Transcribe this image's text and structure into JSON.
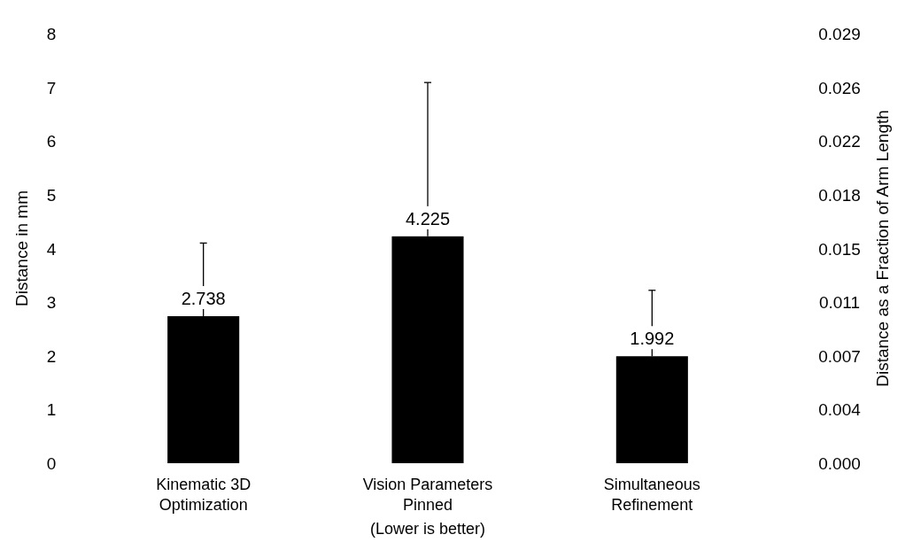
{
  "chart_data": {
    "type": "bar",
    "categories": [
      "Kinematic 3D Optimization",
      "Vision Parameters Pinned",
      "Simultaneous Refinement"
    ],
    "values": [
      2.738,
      4.225,
      1.992
    ],
    "errors": [
      [
        2.738,
        4.1
      ],
      [
        4.225,
        7.09
      ],
      [
        1.992,
        3.22
      ]
    ],
    "color": "#000000",
    "data_labels": true,
    "xlabel": "(Lower is better)",
    "ylabel": "Distance in mm",
    "y2label": "Distance as a Fraction of Arm Length",
    "ylim": [
      0,
      8
    ],
    "yticks": [
      0,
      1,
      2,
      3,
      4,
      5,
      6,
      7,
      8
    ],
    "y2lim": [
      0,
      0.0294
    ],
    "y2ticks": [
      {
        "value": 0,
        "label": "0.000"
      },
      {
        "value": 0.003675,
        "label": "0.004"
      },
      {
        "value": 0.00735,
        "label": "0.007"
      },
      {
        "value": 0.011025,
        "label": "0.011"
      },
      {
        "value": 0.0147,
        "label": "0.015"
      },
      {
        "value": 0.018375,
        "label": "0.018"
      },
      {
        "value": 0.02205,
        "label": "0.022"
      },
      {
        "value": 0.025725,
        "label": "0.026"
      },
      {
        "value": 0.0294,
        "label": "0.029"
      }
    ],
    "grid": false
  }
}
